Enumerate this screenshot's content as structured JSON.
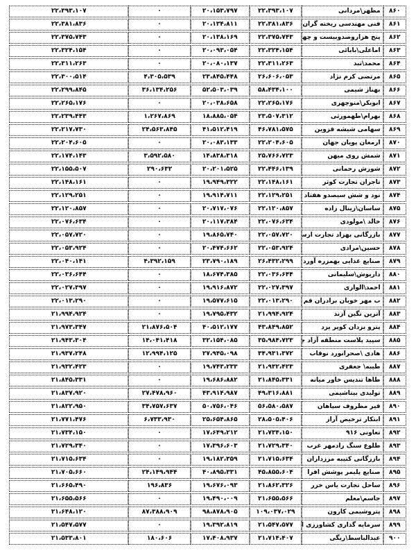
{
  "document": {
    "language": "fa",
    "direction": "rtl",
    "text_color": "#000000",
    "border_style": "dotted-black",
    "background": "#ffffff"
  },
  "table": {
    "columns": [
      "id",
      "name",
      "v1",
      "v2",
      "v3",
      "v4"
    ],
    "rows": [
      {
        "id": "۸۶۰",
        "name": "مظهر\\مردانی",
        "v1": "۲۲،۳۹۳،۱۰۷",
        "v2": "۲۰،۱۵۳،۷۹۷",
        "v3": "۰",
        "v4": "۲۲،۳۹۳،۱۰۷"
      },
      {
        "id": "۸۶۱",
        "name": "فنی مهندسی ریخته گران پاسارگاد",
        "v1": "۲۲،۳۸۱،۸۳۶",
        "v2": "۲۰،۱۳۴،۸۱۱",
        "v3": "۰",
        "v4": "۲۲،۳۸۱،۸۳۶"
      },
      {
        "id": "۸۶۲",
        "name": "پنج هزاروصدوبیست و چهار تولیدی",
        "v1": "۲۲،۳۷۵،۷۴۳",
        "v2": "۲۰،۱۳۸،۱۶۹",
        "v3": "۰",
        "v4": "۲۲،۳۷۵،۷۴۳"
      },
      {
        "id": "۸۶۳",
        "name": "اماعلی\\بابائی",
        "v1": "۲۲،۳۲۴،۱۵۴",
        "v2": "۲۰،۰۹۳،۰۵۴",
        "v3": "۰",
        "v4": "۲۲،۳۲۴،۱۵۴"
      },
      {
        "id": "۸۶۴",
        "name": "محمد\\تبد",
        "v1": "۲۲،۳۱۱،۲۶۳",
        "v2": "۲۰،۰۸۰،۱۳۷",
        "v3": "۰",
        "v4": "۲۲،۳۱۱،۲۶۳"
      },
      {
        "id": "۸۶۵",
        "name": "مرتضی کرم نژاد",
        "v1": "۲۶،۶۰۶،۰۵۳",
        "v2": "۲۳،۸۴۵،۴۴۸",
        "v3": "۴،۳۰۵،۵۳۹",
        "v4": "۲۲،۳۰۰،۵۱۴"
      },
      {
        "id": "۸۶۶",
        "name": "بهناز شیمی",
        "v1": "۵۸،۴۳۴،۱۰۰",
        "v2": "۵۲،۵۰۳،۰۳۹",
        "v3": "۳۶،۱۳۴،۲۵۶",
        "v4": "۲۲،۲۹۹،۸۴۵"
      },
      {
        "id": "۸۶۷",
        "name": "ابوبکر\\منوچهری",
        "v1": "۲۲،۲۶۵،۱۷۶",
        "v2": "۲۰،۰۳۸،۶۵۸",
        "v3": "۰",
        "v4": "۲۲،۲۶۵،۱۷۶"
      },
      {
        "id": "۸۶۸",
        "name": "بهرام\\طهمورثی",
        "v1": "۲۳،۵۰۷،۳۱۲",
        "v2": "۱۸،۸۸۵،۰۵۴",
        "v3": "۱،۲۶۷،۸۶۹",
        "v4": "۲۲،۲۳۹،۴۴۳"
      },
      {
        "id": "۸۶۹",
        "name": "سهامی شیشه قزوین",
        "v1": "۴۶،۷۸۱،۵۷۵",
        "v2": "۴۱،۵۱۲،۴۱۹",
        "v3": "۲۴،۵۶۳،۸۴۵",
        "v4": "۲۲،۲۱۷،۷۳۰"
      },
      {
        "id": "۸۷۰",
        "name": "ارمغان پویان جهان",
        "v1": "۲۲،۲۰۴،۶۰۵",
        "v2": "۲۰،۰۸۳،۱۳۳",
        "v3": "۰",
        "v4": "۲۲،۲۰۴،۶۰۵"
      },
      {
        "id": "۸۷۱",
        "name": "شمش روی میهن",
        "v1": "۲۵،۷۶۶،۷۲۳",
        "v2": "۱۴،۸۳۸،۳۱۸",
        "v3": "۳،۵۹۲،۵۸۰",
        "v4": "۲۲،۱۷۴،۱۴۳"
      },
      {
        "id": "۸۷۲",
        "name": "شورش رحمانی",
        "v1": "۲۲،۴۴۶،۱۳۹",
        "v2": "۲۰،۲۰۱،۵۲۵",
        "v3": "۲۹۰،۶۳۲",
        "v4": "۲۲،۱۵۵،۵۰۷"
      },
      {
        "id": "۸۷۳",
        "name": "تاجران تجارت کوثر",
        "v1": "۲۲،۱۴۸،۱۶۱",
        "v2": "۱۹،۹۴۹،۳۲۲",
        "v3": "۰",
        "v4": "۲۲،۱۴۸،۱۶۱"
      },
      {
        "id": "۸۷۴",
        "name": "نود و شش سیصدو هفتاد و شش",
        "v1": "۲۲،۱۲۹،۲۵۱",
        "v2": "۱۹،۹۱۴،۷۱۱",
        "v3": "۰",
        "v4": "۲۲،۱۲۹،۲۵۱"
      },
      {
        "id": "۸۷۵",
        "name": "ساسان\\زینال زاده",
        "v1": "۲۲،۱۲۰،۸۵۷",
        "v2": "۲۰،۷۱۷،۰۷۶",
        "v3": "۰",
        "v4": "۲۲،۱۲۰،۸۵۷"
      },
      {
        "id": "۸۷۶",
        "name": "خالد \\مولودی",
        "v1": "۲۲،۰۷۶،۶۳۴",
        "v2": "۲۰،۱۱۷،۳۸۴",
        "v3": "۰",
        "v4": "۲۲،۰۷۶،۶۳۴"
      },
      {
        "id": "۸۷۷",
        "name": "بازرگانی بهزاد تجارت ارس ایلمان",
        "v1": "۲۲،۰۵۷،۷۲۰",
        "v2": "۱۹،۸۶۵،۷۴۰",
        "v3": "۰",
        "v4": "۲۲،۰۵۷،۷۲۰"
      },
      {
        "id": "۸۷۸",
        "name": "حسین\\مرادی",
        "v1": "۲۲،۰۵۳،۹۲۴",
        "v2": "۲۰،۴۷۴،۶۶۲",
        "v3": "۰",
        "v4": "۲۲،۰۵۳،۹۲۴"
      },
      {
        "id": "۸۷۹",
        "name": "صنایع غذایی بهمزره آوردجم",
        "v1": "۲۶،۴۳۲،۲۹۹",
        "v2": "۲۳،۷۹۰،۱۸۹",
        "v3": "۴،۳۹۲،۱۵۹",
        "v4": "۲۲،۰۴۰،۱۴۱"
      },
      {
        "id": "۸۸۰",
        "name": "داریوش\\سلیمانی",
        "v1": "۲۲،۰۳۶،۶۴۴",
        "v2": "۱۸،۶۷۴،۳۸۵",
        "v3": "۰",
        "v4": "۲۲،۰۳۶،۶۴۴"
      },
      {
        "id": "۸۸۱",
        "name": "احمد\\الواری",
        "v1": "۲۲،۰۲۷،۳۹۷",
        "v2": "۱۹،۹۱۶،۸۷۲",
        "v3": "۰",
        "v4": "۲۲،۰۲۷،۳۹۷"
      },
      {
        "id": "۸۸۲",
        "name": "ب مهر خوبان برادران قم",
        "v1": "۲۲،۰۱۳،۲۹۰",
        "v2": "۱۹،۵۷۷،۶۱۵",
        "v3": "۰",
        "v4": "۲۲،۰۱۳،۲۹۰"
      },
      {
        "id": "۸۸۳",
        "name": "آترین نگین آزند",
        "v1": "۲۱،۹۹۴،۹۲۴",
        "v2": "۱۹،۷۹۵،۴۳۲",
        "v3": "۰",
        "v4": "۲۱،۹۹۴،۹۲۴"
      },
      {
        "id": "۸۸۴",
        "name": "پترو یزدان کویر یزد",
        "v1": "۴۳،۸۴۹،۸۵۲",
        "v2": "۴۰،۵۱۲،۱۷۷",
        "v3": "۲۱،۸۷۶،۵۰۴",
        "v4": "۲۱،۹۷۳،۳۴۷"
      },
      {
        "id": "۸۸۵",
        "name": "سپید پلاست منطقه آزاد چابهار",
        "v1": "۳۵،۹۸۴،۷۲۳",
        "v2": "۳۲،۱۵۴،۰۸۵",
        "v3": "۱۴،۰۴۱،۴۱۸",
        "v4": "۲۱،۹۴۳،۳۰۴"
      },
      {
        "id": "۸۸۶",
        "name": "هادی \\صحرانورد نوقاب",
        "v1": "۳۴،۹۳۱،۳۷۲",
        "v2": "۲۷،۹۴۵،۰۹۸",
        "v3": "۱۲،۹۹۴،۱۲۵",
        "v4": "۲۱،۹۳۷،۲۴۸"
      },
      {
        "id": "۸۸۷",
        "name": "طیبه\\ جعفری",
        "v1": "۲۱،۹۳۲،۴۲۳",
        "v2": "۱۹،۷۴۳،۲۳۳",
        "v3": "۰",
        "v4": "۲۱،۹۳۲،۴۲۳"
      },
      {
        "id": "۸۸۸",
        "name": "طاها تندیس خاور میانه",
        "v1": "۲۱،۸۴۵،۳۳۱",
        "v2": "۱۹،۶۸۶،۸۸۲",
        "v3": "۰",
        "v4": "۲۱،۸۴۵،۳۳۱"
      },
      {
        "id": "۸۸۹",
        "name": "تولیدی بیتاشیمی",
        "v1": "۴۹،۳۱۶،۸۸۱",
        "v2": "۴۳،۹۱۴،۹۸۷",
        "v3": "۲۷،۴۷۸،۹۶۰",
        "v4": "۲۱،۸۳۷،۹۲۰"
      },
      {
        "id": "۸۹۰",
        "name": "قیر مظروف سپاهان",
        "v1": "۵۶،۵۸۰،۵۸۷",
        "v2": "۵۰،۷۵۶،۰۴۶",
        "v3": "۳۴،۷۵۷،۶۳۷",
        "v4": "۲۱،۸۲۲،۹۵۰"
      },
      {
        "id": "۸۹۱",
        "name": "ابتکار ترخیص آراز",
        "v1": "۲۸،۵۰۵،۴۰۶",
        "v2": "۲۵،۶۵۴،۸۶۵",
        "v3": "۶،۷۳۳،۹۳۰",
        "v4": "۲۱،۷۷۱،۴۷۶"
      },
      {
        "id": "۸۹۲",
        "name": "تعاونی ۹۱۶",
        "v1": "۲۱،۷۳۴،۱۵۰",
        "v2": "۱۷،۶۴۹،۲۱۲",
        "v3": "۰",
        "v4": "۲۱،۷۳۴،۱۵۰"
      },
      {
        "id": "۸۹۳",
        "name": "طلوع سنگ رادمهر غرب",
        "v1": "۲۱،۷۲۹،۳۴۰",
        "v2": "۱۷،۳۹۶،۶۰۳",
        "v3": "۰",
        "v4": "۲۱،۷۲۹،۳۴۰"
      },
      {
        "id": "۸۹۴",
        "name": "بازرگانی کتیبه مرزداران",
        "v1": "۲۱،۷۱۵،۶۳۴",
        "v2": "۱۹،۱۸۲،۳۵۹",
        "v3": "۰",
        "v4": "۲۱،۷۱۵،۶۳۴"
      },
      {
        "id": "۸۹۵",
        "name": "صنایع پلیمر پوشش افرا",
        "v1": "۴۵،۸۵۵،۶۰۴",
        "v2": "۴۰،۸۹۵،۳۳۱",
        "v3": "۲۴،۱۴۹،۹۴۴",
        "v4": "۲۱،۷۰۵،۶۶۰"
      },
      {
        "id": "۸۹۶",
        "name": "ساحل تجارت یاس خزر",
        "v1": "۲۱،۸۶۲،۳۲۶",
        "v2": "۱۹،۶۷۶،۰۹۳",
        "v3": "۱۹۶،۸۳۶",
        "v4": "۲۱،۶۶۵،۴۹۰"
      },
      {
        "id": "۸۹۷",
        "name": "جاسم\\معلم",
        "v1": "۲۱،۶۵۵،۵۶۶",
        "v2": "۱۹،۴۹۰،۰۰۹",
        "v3": "۰",
        "v4": "۲۱،۶۵۵،۵۶۶"
      },
      {
        "id": "۸۹۸",
        "name": "پتروشیمی کارون",
        "v1": "۱۰۹،۰۳۷،۰۲۹",
        "v2": "۹۸،۸۷۸،۹۰۵",
        "v3": "۸۷،۳۸۸،۹۰۹",
        "v4": "۲۱،۶۴۸،۱۲۰"
      },
      {
        "id": "۸۹۹",
        "name": "سرمایه گذاری کشاورزی ایرا",
        "v1": "۲۱،۵۴۷،۵۷۷",
        "v2": "۱۹،۳۹۲،۸۱۹",
        "v3": "۰",
        "v4": "۲۱،۵۴۷،۵۷۷"
      },
      {
        "id": "۹۰۰",
        "name": "عبدالباسط\\ریگی",
        "v1": "۲۱،۷۱۴،۴۰۷",
        "v2": "۱۷،۴۰۸،۹۳۷",
        "v3": "۱۸۰،۶۰۶",
        "v4": "۲۱،۵۳۳،۸۰۱"
      }
    ]
  }
}
